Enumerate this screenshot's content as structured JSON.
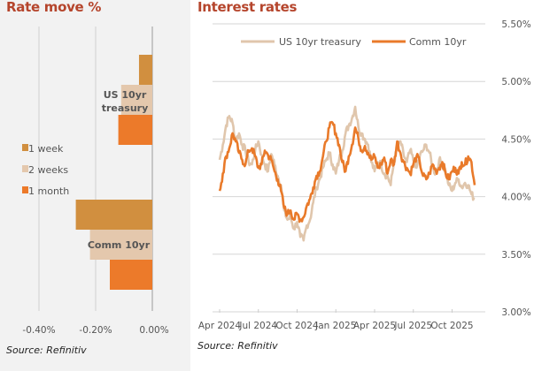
{
  "colors": {
    "one_week": "#d18f3f",
    "two_weeks": "#e4c8ad",
    "one_month": "#ec7a2a",
    "us_treasury_line": "#e0c6ac",
    "comm_line": "#e97a2a",
    "title": "#b5452c",
    "grid": "#cccccc",
    "axis_text": "#555555"
  },
  "chart_data": [
    {
      "type": "bar",
      "orientation": "horizontal",
      "title": "Rate move %",
      "source": "Source: Refinitiv",
      "categories": [
        "US 10yr treasury",
        "Comm 10yr"
      ],
      "category_labels": [
        [
          "US 10yr",
          "treasury"
        ],
        [
          "Comm 10yr"
        ]
      ],
      "series": [
        {
          "name": "1 week",
          "values": [
            -0.047,
            -0.27
          ]
        },
        {
          "name": "2 weeks",
          "values": [
            -0.11,
            -0.22
          ]
        },
        {
          "name": "1 month",
          "values": [
            -0.12,
            -0.15
          ]
        }
      ],
      "xlim": [
        -0.5,
        0.0
      ],
      "xticks": [
        -0.4,
        -0.2,
        0.0
      ],
      "xtick_labels": [
        "-0.40%",
        "-0.20%",
        "0.00%"
      ],
      "grid": true,
      "legend_placement": "left-middle"
    },
    {
      "type": "line",
      "title": "Interest rates",
      "source": "Source: Refinitiv",
      "xlabel": "",
      "ylabel": "",
      "ylim": [
        3.0,
        5.5
      ],
      "yticks": [
        3.0,
        3.5,
        4.0,
        4.5,
        5.0,
        5.5
      ],
      "ytick_labels": [
        "3.00%",
        "3.50%",
        "4.00%",
        "4.50%",
        "5.00%",
        "5.50%"
      ],
      "xlim": [
        "2024-04-01",
        "2025-10-24"
      ],
      "xticks": [
        "Apr 2024",
        "Jul 2024",
        "Oct 2024",
        "Jan 2025",
        "Apr 2025",
        "Jul 2025",
        "Oct 2025"
      ],
      "legend_placement": "top-center",
      "grid": true,
      "x_months": [
        0,
        0.25,
        0.5,
        0.75,
        1,
        1.25,
        1.5,
        1.75,
        2,
        2.25,
        2.5,
        2.75,
        3,
        3.25,
        3.5,
        3.75,
        4,
        4.25,
        4.5,
        4.75,
        5,
        5.25,
        5.5,
        5.75,
        6,
        6.25,
        6.5,
        6.75,
        7,
        7.25,
        7.5,
        7.75,
        8,
        8.25,
        8.5,
        8.75,
        9,
        9.25,
        9.5,
        9.75,
        10,
        10.25,
        10.5,
        10.75,
        11,
        11.25,
        11.5,
        11.75,
        12,
        12.25,
        12.5,
        12.75,
        13,
        13.25,
        13.5,
        13.75,
        14,
        14.25,
        14.5,
        14.75,
        15,
        15.25,
        15.5,
        15.75,
        16,
        16.25,
        16.5,
        16.75,
        17,
        17.25,
        17.5,
        17.75,
        18,
        18.25,
        18.5,
        18.75,
        19,
        19.25,
        19.5,
        19.75
      ],
      "series": [
        {
          "name": "US 10yr treasury",
          "values": [
            4.32,
            4.45,
            4.62,
            4.7,
            4.64,
            4.48,
            4.55,
            4.45,
            4.4,
            4.3,
            4.28,
            4.4,
            4.48,
            4.36,
            4.28,
            4.22,
            4.37,
            4.28,
            4.18,
            4.1,
            3.88,
            3.8,
            3.82,
            3.72,
            3.78,
            3.65,
            3.62,
            3.75,
            3.8,
            3.95,
            4.08,
            4.15,
            4.25,
            4.32,
            4.38,
            4.28,
            4.2,
            4.32,
            4.4,
            4.55,
            4.62,
            4.68,
            4.78,
            4.6,
            4.55,
            4.5,
            4.45,
            4.3,
            4.22,
            4.3,
            4.28,
            4.2,
            4.18,
            4.1,
            4.3,
            4.42,
            4.48,
            4.36,
            4.3,
            4.4,
            4.32,
            4.25,
            4.35,
            4.4,
            4.45,
            4.38,
            4.25,
            4.2,
            4.32,
            4.28,
            4.22,
            4.1,
            4.05,
            4.12,
            4.15,
            4.08,
            4.12,
            4.1,
            4.02,
            3.98
          ]
        },
        {
          "name": "Comm 10yr",
          "values": [
            4.05,
            4.2,
            4.35,
            4.42,
            4.55,
            4.48,
            4.38,
            4.32,
            4.28,
            4.4,
            4.42,
            4.35,
            4.25,
            4.28,
            4.4,
            4.36,
            4.32,
            4.22,
            4.15,
            4.05,
            3.9,
            3.85,
            3.88,
            3.8,
            3.85,
            3.8,
            3.82,
            3.92,
            3.98,
            4.08,
            4.18,
            4.22,
            4.35,
            4.48,
            4.6,
            4.64,
            4.55,
            4.45,
            4.3,
            4.22,
            4.35,
            4.45,
            4.6,
            4.5,
            4.4,
            4.44,
            4.38,
            4.32,
            4.35,
            4.25,
            4.28,
            4.34,
            4.2,
            4.32,
            4.28,
            4.48,
            4.38,
            4.3,
            4.25,
            4.2,
            4.28,
            4.35,
            4.3,
            4.18,
            4.15,
            4.2,
            4.28,
            4.22,
            4.25,
            4.3,
            4.2,
            4.15,
            4.22,
            4.25,
            4.2,
            4.3,
            4.28,
            4.35,
            4.3,
            4.1
          ]
        }
      ]
    }
  ]
}
